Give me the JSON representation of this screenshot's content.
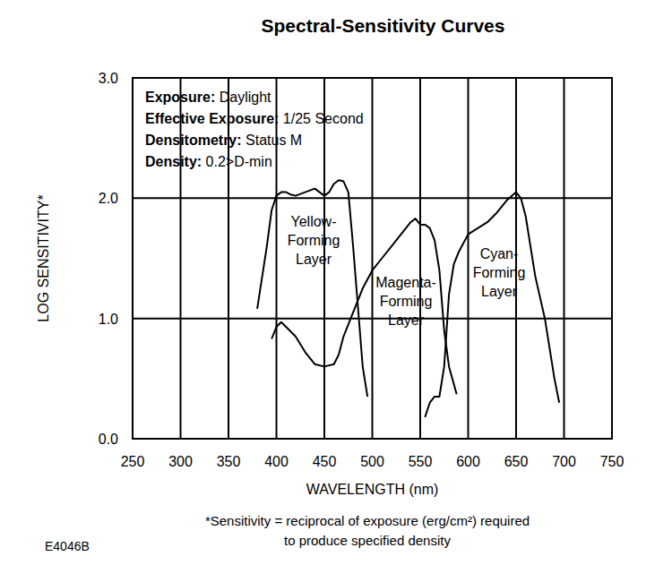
{
  "chart_data": {
    "type": "line",
    "title": "Spectral-Sensitivity Curves",
    "x_label": "WAVELENGTH (nm)",
    "y_label": "LOG SENSITIVITY*",
    "annotations": [
      {
        "label": "Exposure:",
        "text": "Daylight"
      },
      {
        "label": "Effective Exposure:",
        "text": "1/25 Second"
      },
      {
        "label": "Densitometry:",
        "text": "Status M"
      },
      {
        "label": "Density:",
        "text": "0.2>D-min"
      }
    ],
    "footnote": [
      "*Sensitivity = reciprocal of exposure (erg/cm²) required",
      "to produce specified density"
    ],
    "figure_id": "E4046B",
    "xlim": [
      250,
      750
    ],
    "ylim": [
      0,
      3
    ],
    "xticks": [
      250,
      300,
      350,
      400,
      450,
      500,
      550,
      600,
      650,
      700,
      750
    ],
    "yticks": [
      {
        "value": 0,
        "label": "0.0"
      },
      {
        "value": 1,
        "label": "1.0"
      },
      {
        "value": 2,
        "label": "2.0"
      },
      {
        "value": 3,
        "label": "3.0"
      }
    ],
    "grid": true,
    "series": [
      {
        "name": "Yellow-Forming Layer",
        "color": "#000000",
        "x": [
          380,
          390,
          395,
          400,
          405,
          410,
          415,
          420,
          430,
          440,
          445,
          450,
          455,
          460,
          465,
          470,
          475,
          480,
          485,
          490,
          495
        ],
        "values": [
          1.08,
          1.6,
          1.9,
          2.02,
          2.05,
          2.05,
          2.03,
          2.02,
          2.05,
          2.08,
          2.05,
          2.02,
          2.05,
          2.12,
          2.15,
          2.14,
          2.05,
          1.6,
          1.1,
          0.6,
          0.35
        ]
      },
      {
        "name": "Magenta-Forming Layer",
        "color": "#000000",
        "x": [
          395,
          400,
          405,
          410,
          420,
          430,
          440,
          450,
          460,
          465,
          470,
          480,
          490,
          500,
          510,
          520,
          530,
          540,
          545,
          550,
          555,
          560,
          565,
          570,
          575,
          580,
          588
        ],
        "values": [
          0.83,
          0.93,
          0.97,
          0.93,
          0.85,
          0.72,
          0.62,
          0.6,
          0.62,
          0.7,
          0.85,
          1.05,
          1.25,
          1.4,
          1.5,
          1.6,
          1.7,
          1.8,
          1.83,
          1.78,
          1.78,
          1.75,
          1.65,
          1.4,
          0.9,
          0.6,
          0.37
        ]
      },
      {
        "name": "Cyan-Forming Layer",
        "color": "#000000",
        "x": [
          555,
          560,
          565,
          570,
          575,
          580,
          585,
          590,
          600,
          610,
          620,
          630,
          640,
          650,
          655,
          660,
          665,
          670,
          680,
          690,
          695
        ],
        "values": [
          0.18,
          0.3,
          0.35,
          0.35,
          0.6,
          1.2,
          1.45,
          1.55,
          1.7,
          1.75,
          1.8,
          1.88,
          1.98,
          2.05,
          2.0,
          1.85,
          1.6,
          1.35,
          1.0,
          0.5,
          0.3
        ]
      }
    ]
  }
}
